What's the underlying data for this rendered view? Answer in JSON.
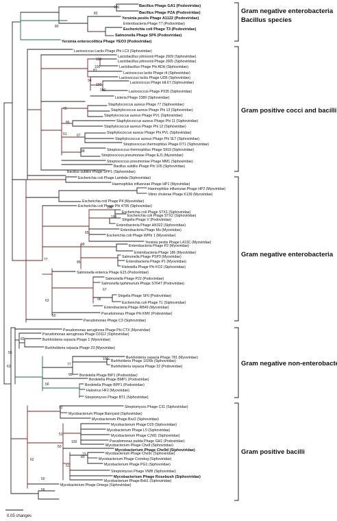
{
  "groups": [
    {
      "lines": [
        "Gram negative enterobacteria",
        "Bacillus species"
      ]
    },
    {
      "lines": [
        "Gram positive cocci and bacilli"
      ]
    },
    {
      "lines": [
        "Gram negative enterobacteria"
      ]
    },
    {
      "lines": [
        "Gram negative non-enterobacteria"
      ]
    },
    {
      "lines": [
        "Gram positive bacilli"
      ]
    }
  ],
  "scale_label": "0.05 changes",
  "leaves": [
    "Bacillus Phage GA1 (Podoviridae)",
    "Bacillus Phage PZA (Podoviridae)",
    "Yersinia pestis Phage A1122 (Podoviridae)",
    "Enterobacteria Phage T7 (Podoviridae)",
    "Escherichia coli Phage T3 (Podoviridae)",
    "Salmonella Phage SP6 (Podoviridae)",
    "Yersinia enterocolitica Phage YEO3 (Podoviridae)",
    "Lactococcus Lactis Phage Phi LC3 (Siphoviridae)",
    "Lactobacillus johnsonii Phage J509 (Siphoviridae)",
    "Lactobacillus johnsonii Phage J665 (Siphoviridae)",
    "Lactobacillus Phage Phi ADH (Siphoviridae)",
    "Lactococcus lactis Phage rlt (Siphoviridae)",
    "Lactococcus lactis Phage Ul36 (Siphoviridae)",
    "Lactococcus Phage bIL67 (Siphoviridae)",
    "Lactococcus Phage P335 (Siphoviridae)",
    "Listeria Phage 2389 (Siphoviridae)",
    "Staphylococcus aureus Phage 77 (Siphoviridae)",
    "Staphylococcus aureus Phage Phi 13 (Siphoviridae)",
    "Staphylococcus aureus Phage PVL (Siphoviridae)",
    "Staphylococcus aureus Phage Phi 11 (Siphoviridae)",
    "Staphylococcus aureus Phage Phi 12 (Siphoviridae)",
    "Staphylococcus aureus Phage Phi PVL (Siphoviridae)",
    "Staphylococcus aureus Phage Phi SLT (Siphoviridae)",
    "Streptococcus thermophilus Phage DT1 (Siphoviridae)",
    "Streptococcus thermophilus Phage Sfi19 (Siphoviridae)",
    "Streptococcus pneumoniae Phage EJ1 (Myoviridae)",
    "Streptococcus pneumoniae Phage MM1 (Siphoviridae)",
    "Bacillus subtilis Phage Phi 105 (Siphoviridae)",
    "Bacillus subtilis Phage SPP1 (Siphoviridae)",
    "Escherichia coli Phage Lambda (Siphoviridae)",
    "Haemophilus influenzae Phage HP1 (Myoviridae)",
    "Haemophilus influenzae Phage HP2 (Myoviridae)",
    "Vibrio cholerae Phage K139 (Myoviridae)",
    "Escherichia coli Phage P4 (Myoviridae)",
    "Escherichia coli Phage Phi 4795 (Siphoviridae)",
    "Escherichia coli Phage STX1 (Siphoviridae)",
    "Escherichia coli Phage STX2 (Siphoviridae)",
    "Shigella Phage V (Podoviridae)",
    "Enterobacteria Phage HK022 (Siphoviridae)",
    "Enterobacteria Phage Mu (Myoviridae)",
    "Escherichia coli Phage WPhi 1 (Myoviridae)",
    "Yersinia pestis Phage L413C (Myoviridae)",
    "Enterobacteria Phage P2 (Myoviridae)",
    "Enterobacteria Phage 186 (Myoviridae)",
    "Salmonella Phage PSP3 (Myoviridae)",
    "Enterobacteria Phage P1 (Myoviridae)",
    "Klebsiella Phage Phi KO2 (Siphoviridae)",
    "Salmonella enterica Phage E15 (Podoviridae)",
    "Salmonella Phage P22 (Podoviridae)",
    "Salmonella typhimurium Phage ST64T (Podoviridae)",
    "Shigella Phage SF6 (Podoviridae)",
    "Escherichia coli Phage T1 (Siphoviridae)",
    "Enterobacteria Phage RB49 (Myoviridae)",
    "Pseudomonas Phage Phi KMV (Podoviridae)",
    "Pseudomonas Phage C3 (Siphoviridae)",
    "Pseudomonas aeruginosa Phage Phi CTX (Myoviridae)",
    "Pseudomonas aeruginosa Phage D3112 (Siphoviridae)",
    "Burkholderia cepacia Phage 1 (Myoviridae)",
    "Burkholderia cepacia Phage 23 (Myoviridae)",
    "Burkholderia cepacia Phage 781 (Myoviridae)",
    "Burkholderia Phage 1026b (Siphoviridae)",
    "Burkholderia cepacia Phage 22 (Podoviridae)",
    "Bordetella Phage BIP1 (Podoviridae)",
    "Bordetella Phage BMP1 (Podoviridae)",
    "Bordetella Phage BPP1 (Podoviridae)",
    "Halovirus HF2 (Myoviridae)",
    "Streptomyces Phage BT1 (Siphoviridae)",
    "Streptomyces Phage C31 (Siphoviridae)",
    "Mycobacterium Phage Barnyard (Siphoviridae)",
    "Mycobacterium Phage Bxz2 (Siphoviridae)",
    "Mycobacterium Phage D29 (Siphoviridae)",
    "Mycobacterium Phage L5 (Siphoviridae)",
    "Mycobacterium Phage CJW1 (Siphoviridae)",
    "Pseudomonas putida Phage GH1 (Podoviridae)",
    "Mycobacterium Phage Che8 (Siphoviridae)",
    "Mycobacterium Phage Che9d (Siphoviridae)",
    "Mycobacterium Phage Che9c (Siphoviridae)",
    "Mycobacterium Phage Corndog (Siphoviridae)",
    "Mycobacterium Phage PG1 (Siphoviridae)",
    "Streptomyces Phage VWB (Siphoviridae)",
    "Mycobacterium Phage Rosebush (Siphoviridae)",
    "Mycobacterium Phage Bxb1 (Siphoviridae)",
    "Mycobacterium Phage Omega (Siphoviridae)"
  ],
  "bootstrap_values": [
    "100",
    "82",
    "80",
    "100",
    "100",
    "81",
    "94",
    "100",
    "100",
    "72",
    "86",
    "51",
    "67",
    "98",
    "100",
    "100",
    "77",
    "99",
    "65",
    "85",
    "67",
    "96",
    "63",
    "50",
    "55",
    "63",
    "82",
    "100",
    "77",
    "96",
    "56",
    "92",
    "51",
    "50",
    "80",
    "51",
    "73",
    "62",
    "56",
    "100",
    "50"
  ]
}
